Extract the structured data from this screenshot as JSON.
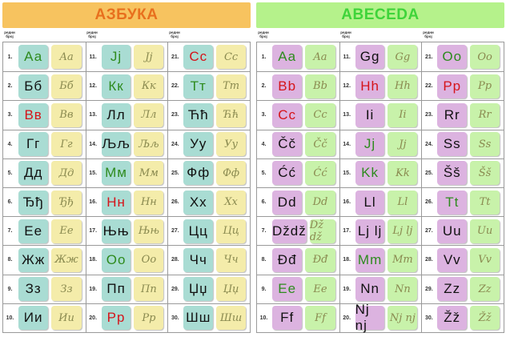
{
  "colors": {
    "green": "#2e8b1e",
    "red": "#d5141a",
    "black": "#111111"
  },
  "cyrillic": {
    "title": "АЗБУКА",
    "column_header": "редни број",
    "letters": [
      {
        "n": "1.",
        "print": "Аа",
        "cursive": "Аа",
        "color": "green"
      },
      {
        "n": "2.",
        "print": "Бб",
        "cursive": "Бб",
        "color": "black"
      },
      {
        "n": "3.",
        "print": "Вв",
        "cursive": "Вв",
        "color": "red"
      },
      {
        "n": "4.",
        "print": "Гг",
        "cursive": "Гг",
        "color": "black"
      },
      {
        "n": "5.",
        "print": "Дд",
        "cursive": "Дд",
        "color": "black"
      },
      {
        "n": "6.",
        "print": "Ђђ",
        "cursive": "Ђђ",
        "color": "black"
      },
      {
        "n": "7.",
        "print": "Ее",
        "cursive": "Ее",
        "color": "black"
      },
      {
        "n": "8.",
        "print": "Жж",
        "cursive": "Жж",
        "color": "black"
      },
      {
        "n": "9.",
        "print": "Зз",
        "cursive": "Зз",
        "color": "black"
      },
      {
        "n": "10.",
        "print": "Ии",
        "cursive": "Ии",
        "color": "black"
      },
      {
        "n": "11.",
        "print": "Јј",
        "cursive": "Јј",
        "color": "green"
      },
      {
        "n": "12.",
        "print": "Кк",
        "cursive": "Кк",
        "color": "green"
      },
      {
        "n": "13.",
        "print": "Лл",
        "cursive": "Лл",
        "color": "black"
      },
      {
        "n": "14.",
        "print": "Љљ",
        "cursive": "Љљ",
        "color": "black"
      },
      {
        "n": "15.",
        "print": "Мм",
        "cursive": "Мм",
        "color": "green"
      },
      {
        "n": "16.",
        "print": "Нн",
        "cursive": "Нн",
        "color": "red"
      },
      {
        "n": "17.",
        "print": "Њњ",
        "cursive": "Њњ",
        "color": "black"
      },
      {
        "n": "18.",
        "print": "Оо",
        "cursive": "Оо",
        "color": "green"
      },
      {
        "n": "19.",
        "print": "Пп",
        "cursive": "Пп",
        "color": "black"
      },
      {
        "n": "20.",
        "print": "Рр",
        "cursive": "Рр",
        "color": "red"
      },
      {
        "n": "21.",
        "print": "Сс",
        "cursive": "Сс",
        "color": "red"
      },
      {
        "n": "22.",
        "print": "Тт",
        "cursive": "Тт",
        "color": "green"
      },
      {
        "n": "23.",
        "print": "Ћћ",
        "cursive": "Ћћ",
        "color": "black"
      },
      {
        "n": "24.",
        "print": "Уу",
        "cursive": "Уу",
        "color": "black"
      },
      {
        "n": "25.",
        "print": "Фф",
        "cursive": "Фф",
        "color": "black"
      },
      {
        "n": "26.",
        "print": "Хх",
        "cursive": "Хх",
        "color": "black"
      },
      {
        "n": "27.",
        "print": "Цц",
        "cursive": "Цц",
        "color": "black"
      },
      {
        "n": "28.",
        "print": "Чч",
        "cursive": "Чч",
        "color": "black"
      },
      {
        "n": "29.",
        "print": "Џџ",
        "cursive": "Џџ",
        "color": "black"
      },
      {
        "n": "30.",
        "print": "Шш",
        "cursive": "Шш",
        "color": "black"
      }
    ]
  },
  "latin": {
    "title": "ABECEDA",
    "column_header": "редни број",
    "letters": [
      {
        "n": "1.",
        "print": "Aa",
        "cursive": "Aa",
        "color": "green"
      },
      {
        "n": "2.",
        "print": "Bb",
        "cursive": "Bb",
        "color": "red"
      },
      {
        "n": "3.",
        "print": "Cc",
        "cursive": "Cc",
        "color": "red"
      },
      {
        "n": "4.",
        "print": "Čč",
        "cursive": "Čč",
        "color": "black"
      },
      {
        "n": "5.",
        "print": "Ćć",
        "cursive": "Ćć",
        "color": "black"
      },
      {
        "n": "6.",
        "print": "Dd",
        "cursive": "Dd",
        "color": "black"
      },
      {
        "n": "7.",
        "print": "Dždž",
        "cursive": "Dž dž",
        "color": "black"
      },
      {
        "n": "8.",
        "print": "Đđ",
        "cursive": "Đđ",
        "color": "black"
      },
      {
        "n": "9.",
        "print": "Ee",
        "cursive": "Ee",
        "color": "green"
      },
      {
        "n": "10.",
        "print": "Ff",
        "cursive": "Ff",
        "color": "black"
      },
      {
        "n": "11.",
        "print": "Gg",
        "cursive": "Gg",
        "color": "black"
      },
      {
        "n": "12.",
        "print": "Hh",
        "cursive": "Hh",
        "color": "red"
      },
      {
        "n": "13.",
        "print": "Ii",
        "cursive": "Ii",
        "color": "black"
      },
      {
        "n": "14.",
        "print": "Jj",
        "cursive": "Jj",
        "color": "green"
      },
      {
        "n": "15.",
        "print": "Kk",
        "cursive": "Kk",
        "color": "green"
      },
      {
        "n": "16.",
        "print": "Ll",
        "cursive": "Ll",
        "color": "black"
      },
      {
        "n": "17.",
        "print": "Lj lj",
        "cursive": "Lj lj",
        "color": "black"
      },
      {
        "n": "18.",
        "print": "Mm",
        "cursive": "Mm",
        "color": "green"
      },
      {
        "n": "19.",
        "print": "Nn",
        "cursive": "Nn",
        "color": "black"
      },
      {
        "n": "20.",
        "print": "Nj nj",
        "cursive": "Nj nj",
        "color": "black"
      },
      {
        "n": "21.",
        "print": "Oo",
        "cursive": "Oo",
        "color": "green"
      },
      {
        "n": "22.",
        "print": "Pp",
        "cursive": "Pp",
        "color": "red"
      },
      {
        "n": "23.",
        "print": "Rr",
        "cursive": "Rr",
        "color": "black"
      },
      {
        "n": "24.",
        "print": "Ss",
        "cursive": "Ss",
        "color": "black"
      },
      {
        "n": "25.",
        "print": "Šš",
        "cursive": "Šš",
        "color": "black"
      },
      {
        "n": "26.",
        "print": "Tt",
        "cursive": "Tt",
        "color": "green"
      },
      {
        "n": "27.",
        "print": "Uu",
        "cursive": "Uu",
        "color": "black"
      },
      {
        "n": "28.",
        "print": "Vv",
        "cursive": "Vv",
        "color": "black"
      },
      {
        "n": "29.",
        "print": "Zz",
        "cursive": "Zz",
        "color": "black"
      },
      {
        "n": "30.",
        "print": "Žž",
        "cursive": "Žž",
        "color": "black"
      }
    ]
  }
}
